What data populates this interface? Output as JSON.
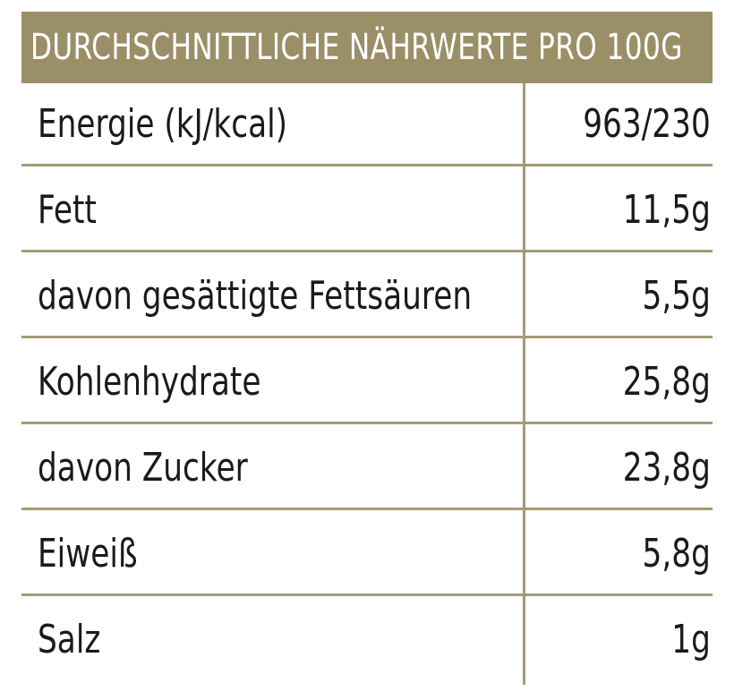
{
  "table": {
    "header": "DURCHSCHNITTLICHE NÄHRWERTE PRO 100G",
    "rows": [
      {
        "label": "Energie (kJ/kcal)",
        "value": "963/230"
      },
      {
        "label": "Fett",
        "value": "11,5g"
      },
      {
        "label": "davon gesättigte Fettsäuren",
        "value": "5,5g"
      },
      {
        "label": "Kohlenhydrate",
        "value": "25,8g"
      },
      {
        "label": "davon Zucker",
        "value": "23,8g"
      },
      {
        "label": "Eiweiß",
        "value": "5,8g"
      },
      {
        "label": "Salz",
        "value": "1g"
      }
    ]
  },
  "colors": {
    "header_bg": "#9b8f68",
    "rule": "#a59b78",
    "text": "#1a1a1a"
  }
}
